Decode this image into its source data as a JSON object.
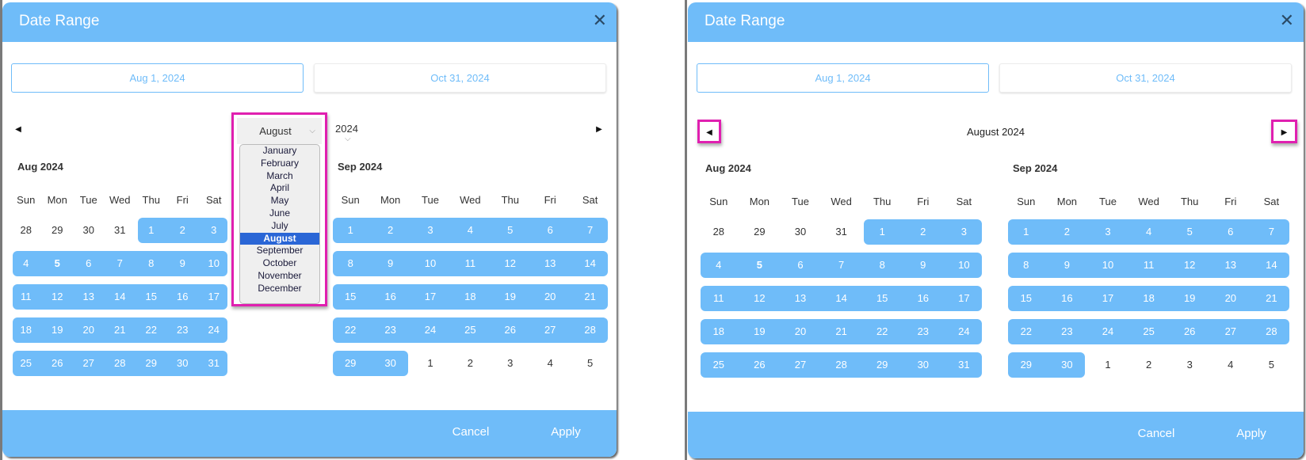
{
  "dialogs": [
    {
      "title": "Date Range",
      "close_icon": "close-icon",
      "start_input": "Aug 1, 2024",
      "end_input": "Oct 31, 2024",
      "nav": {
        "mode": "dropdown",
        "month_select": "August",
        "year_select": "2024",
        "month_options": [
          "January",
          "February",
          "March",
          "April",
          "May",
          "June",
          "July",
          "August",
          "September",
          "October",
          "November",
          "December"
        ],
        "selected_option": "August"
      },
      "footer": {
        "cancel": "Cancel",
        "apply": "Apply"
      }
    },
    {
      "title": "Date Range",
      "close_icon": "close-icon",
      "start_input": "Aug 1, 2024",
      "end_input": "Oct 31, 2024",
      "nav": {
        "mode": "title",
        "title": "August 2024"
      },
      "footer": {
        "cancel": "Cancel",
        "apply": "Apply"
      }
    }
  ],
  "weekdays": [
    "Sun",
    "Mon",
    "Tue",
    "Wed",
    "Thu",
    "Fri",
    "Sat"
  ],
  "calendars": [
    {
      "title": "Aug 2024",
      "lead": 4,
      "trail": 0,
      "today": 5,
      "weeks": [
        [
          28,
          29,
          30,
          31,
          1,
          2,
          3
        ],
        [
          4,
          5,
          6,
          7,
          8,
          9,
          10
        ],
        [
          11,
          12,
          13,
          14,
          15,
          16,
          17
        ],
        [
          18,
          19,
          20,
          21,
          22,
          23,
          24
        ],
        [
          25,
          26,
          27,
          28,
          29,
          30,
          31
        ]
      ]
    },
    {
      "title": "Sep 2024",
      "lead": 0,
      "trail": 5,
      "today": null,
      "weeks": [
        [
          1,
          2,
          3,
          4,
          5,
          6,
          7
        ],
        [
          8,
          9,
          10,
          11,
          12,
          13,
          14
        ],
        [
          15,
          16,
          17,
          18,
          19,
          20,
          21
        ],
        [
          22,
          23,
          24,
          25,
          26,
          27,
          28
        ],
        [
          29,
          30,
          1,
          2,
          3,
          4,
          5
        ]
      ]
    }
  ],
  "colors": {
    "accent": "#6fbcf9",
    "highlight_annotation": "#e020b0",
    "selected_option": "#2a66d6"
  }
}
